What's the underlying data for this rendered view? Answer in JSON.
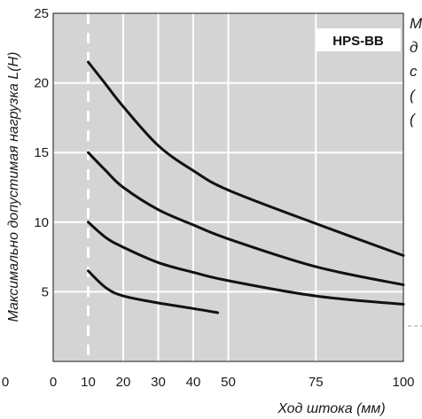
{
  "chart_data": {
    "type": "line",
    "model_tag": "HPS-BB",
    "xlabel": "Ход штока (мм)",
    "ylabel": "Максимально допустимая нагрузка L(Н)",
    "xlim": [
      0,
      100
    ],
    "ylim": [
      0,
      25
    ],
    "x_ticks": [
      {
        "label": "0",
        "value": 0
      },
      {
        "label": "10",
        "value": 10
      },
      {
        "label": "20",
        "value": 20
      },
      {
        "label": "30",
        "value": 30
      },
      {
        "label": "40",
        "value": 40
      },
      {
        "label": "50",
        "value": 50
      },
      {
        "label": "75",
        "value": 75
      },
      {
        "label": "100",
        "value": 100
      }
    ],
    "y_ticks": [
      {
        "label": "5",
        "value": 5
      },
      {
        "label": "10",
        "value": 10
      },
      {
        "label": "15",
        "value": 15
      },
      {
        "label": "20",
        "value": 20
      },
      {
        "label": "25",
        "value": 25
      }
    ],
    "extra_x_tick": {
      "label": "0"
    },
    "dashed_reference_x": 10,
    "series": [
      {
        "x": [
          10,
          15,
          20,
          30,
          40,
          50,
          75,
          100
        ],
        "y": [
          21.5,
          19.9,
          18.3,
          15.5,
          13.7,
          12.3,
          9.9,
          7.6
        ]
      },
      {
        "x": [
          10,
          15,
          20,
          30,
          40,
          50,
          75,
          100
        ],
        "y": [
          15.0,
          13.7,
          12.5,
          10.9,
          9.8,
          8.8,
          6.8,
          5.5
        ]
      },
      {
        "x": [
          10,
          15,
          20,
          30,
          40,
          50,
          75,
          100
        ],
        "y": [
          10.0,
          8.9,
          8.2,
          7.1,
          6.4,
          5.8,
          4.7,
          4.1
        ]
      },
      {
        "x": [
          10,
          15,
          20,
          30,
          40,
          47
        ],
        "y": [
          6.5,
          5.3,
          4.7,
          4.2,
          3.8,
          3.5
        ]
      }
    ],
    "side_note_lines": [
      "М",
      "д",
      "с",
      "(",
      "("
    ],
    "colors": {
      "plot_bg": "#d4d4d4",
      "grid": "#ffffff",
      "curve": "#111111",
      "text": "#1a1a1a"
    }
  }
}
